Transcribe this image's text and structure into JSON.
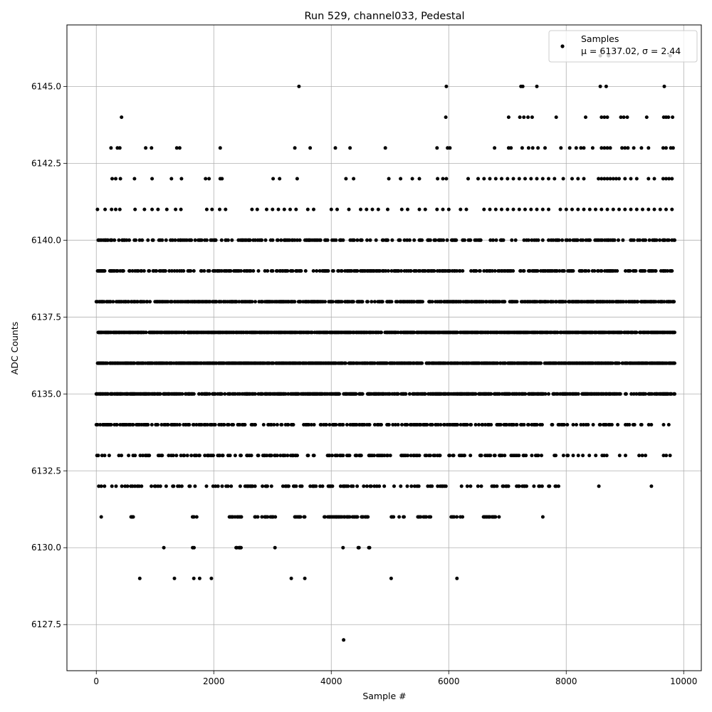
{
  "chart_data": {
    "type": "scatter",
    "title": "Run 529, channel033, Pedestal",
    "xlabel": "Sample #",
    "ylabel": "ADC Counts",
    "xlim": [
      -500,
      10300
    ],
    "ylim": [
      6126.0,
      6147.0
    ],
    "x_ticks": [
      0,
      2000,
      4000,
      6000,
      8000,
      10000
    ],
    "y_ticks": [
      6127.5,
      6130.0,
      6132.5,
      6135.0,
      6137.5,
      6140.0,
      6142.5,
      6145.0
    ],
    "x_tick_labels": [
      "0",
      "2000",
      "4000",
      "6000",
      "8000",
      "10000"
    ],
    "y_tick_labels": [
      "6127.5",
      "6130.0",
      "6132.5",
      "6135.0",
      "6137.5",
      "6140.0",
      "6142.5",
      "6145.0"
    ],
    "grid": true,
    "legend": {
      "position": "top-right",
      "label": "Samples",
      "stats": "μ = 6137.02, σ = 2.44"
    },
    "marker_color": "#000000",
    "n_samples": 9850,
    "series": [
      {
        "name": "Samples",
        "levels": [
          {
            "y": 6145,
            "x": [
              3450,
              5960,
              7230,
              7260,
              7500,
              8580,
              8680,
              9670
            ]
          },
          {
            "y": 6144,
            "x": [
              430,
              5950,
              7020,
              7210,
              7280,
              7350,
              7420,
              7830,
              8330,
              8600,
              8650,
              8700,
              8930,
              8980,
              9040,
              9370,
              9660,
              9700,
              9740,
              9810
            ]
          },
          {
            "y": 6143,
            "x": [
              250,
              360,
              400,
              840,
              940,
              1370,
              1420,
              2110,
              3380,
              3640,
              4070,
              4320,
              4920,
              5800,
              5980,
              6020,
              6780,
              7020,
              7060,
              7250,
              7360,
              7430,
              7520,
              7640,
              7910,
              8060,
              8170,
              8250,
              8300,
              8450,
              8600,
              8650,
              8700,
              8750,
              8950,
              9000,
              9050,
              9150,
              9280,
              9400,
              9650,
              9700,
              9780,
              9820
            ]
          },
          {
            "y": 6142,
            "x": [
              270,
              330,
              410,
              650,
              950,
              1280,
              1450,
              1860,
              1920,
              2110,
              2140,
              3010,
              3120,
              3420,
              4250,
              4380,
              4980,
              5180,
              5380,
              5500,
              5810,
              5900,
              5960,
              6330,
              6500,
              6600,
              6700,
              6800,
              6900,
              7000,
              7100,
              7200,
              7300,
              7400,
              7500,
              7600,
              7700,
              7800,
              7950,
              8100,
              8200,
              8300,
              8550,
              8600,
              8650,
              8700,
              8750,
              8800,
              8850,
              8900,
              9000,
              9100,
              9200,
              9400,
              9500,
              9650,
              9700,
              9750,
              9800
            ]
          },
          {
            "y": 6141,
            "x": [
              20,
              150,
              260,
              330,
              400,
              660,
              820,
              950,
              1050,
              1200,
              1350,
              1440,
              1880,
              1970,
              2100,
              2200,
              2650,
              2740,
              2900,
              3000,
              3100,
              3200,
              3300,
              3400,
              3600,
              3700,
              4000,
              4100,
              4300,
              4500,
              4600,
              4700,
              4800,
              4960,
              5200,
              5300,
              5500,
              5600,
              5800,
              5900,
              6000,
              6200,
              6300,
              6600,
              6700,
              6800,
              6900,
              7000,
              7100,
              7200,
              7300,
              7400,
              7500,
              7600,
              7700,
              7900,
              8000,
              8100,
              8200,
              8300,
              8400,
              8500,
              8600,
              8700,
              8800,
              8900,
              9000,
              9100,
              9200,
              9300,
              9400,
              9500,
              9600,
              9700,
              9800
            ]
          }
        ],
        "outliers": [
          {
            "x": 740,
            "y": 6129
          },
          {
            "x": 1330,
            "y": 6129
          },
          {
            "x": 1660,
            "y": 6129
          },
          {
            "x": 1760,
            "y": 6129
          },
          {
            "x": 1960,
            "y": 6129
          },
          {
            "x": 3320,
            "y": 6129
          },
          {
            "x": 3550,
            "y": 6129
          },
          {
            "x": 5020,
            "y": 6129
          },
          {
            "x": 6140,
            "y": 6129
          },
          {
            "x": 4210,
            "y": 6127
          },
          {
            "x": 9450,
            "y": 6132
          },
          {
            "x": 9770,
            "y": 6146
          },
          {
            "x": 8720,
            "y": 6146
          },
          {
            "x": 8580,
            "y": 6146
          }
        ]
      }
    ]
  }
}
